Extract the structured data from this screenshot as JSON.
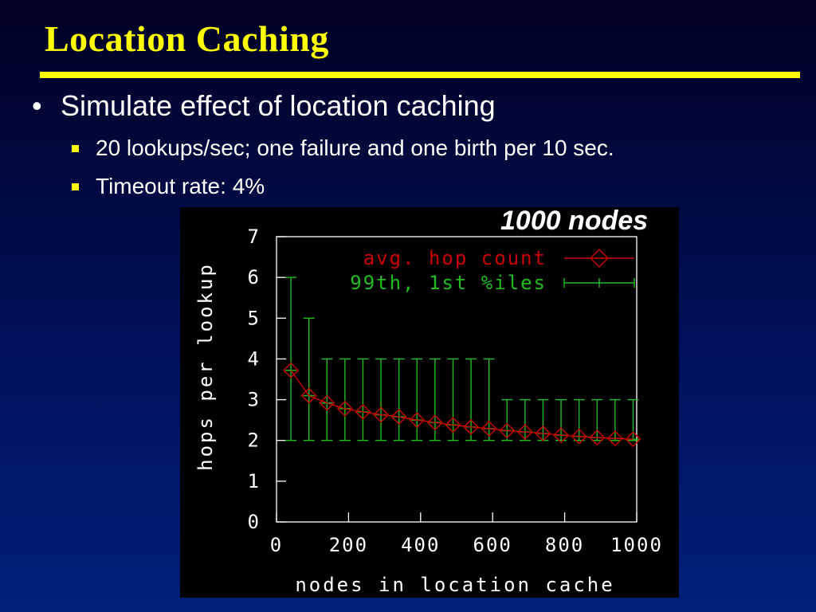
{
  "slide": {
    "title": "Location Caching",
    "bullet": "Simulate effect of location caching",
    "sub_bullets": [
      "20 lookups/sec; one failure and one birth per 10 sec.",
      "Timeout rate: 4%"
    ],
    "chart_note": "1000 nodes"
  },
  "colors": {
    "title": "#ffff00",
    "avg_series": "#cc0000",
    "percentile_series": "#22bb22",
    "axis": "#ffffff"
  },
  "chart_data": {
    "type": "line",
    "xlabel": "nodes in location cache",
    "ylabel": "hops per lookup",
    "xlim": [
      0,
      1000
    ],
    "ylim": [
      0,
      7
    ],
    "xticks": [
      0,
      200,
      400,
      600,
      800,
      1000
    ],
    "yticks": [
      0,
      1,
      2,
      3,
      4,
      5,
      6,
      7
    ],
    "legend_position": "top-right",
    "x": [
      40,
      90,
      140,
      190,
      240,
      290,
      340,
      390,
      440,
      490,
      540,
      590,
      640,
      690,
      740,
      790,
      840,
      890,
      940,
      990
    ],
    "series": [
      {
        "name": "avg. hop count",
        "style": "line-diamond",
        "values": [
          3.72,
          3.1,
          2.92,
          2.78,
          2.7,
          2.63,
          2.58,
          2.5,
          2.44,
          2.38,
          2.33,
          2.29,
          2.24,
          2.21,
          2.17,
          2.13,
          2.1,
          2.07,
          2.05,
          2.03
        ]
      },
      {
        "name": "99th, 1st %iles",
        "style": "errorbar",
        "low": [
          2,
          2,
          2,
          2,
          2,
          2,
          2,
          2,
          2,
          2,
          2,
          2,
          2,
          2,
          2,
          2,
          2,
          2,
          2,
          2
        ],
        "high": [
          6,
          5,
          4,
          4,
          4,
          4,
          4,
          4,
          4,
          4,
          4,
          4,
          3,
          3,
          3,
          3,
          3,
          3,
          3,
          3
        ]
      }
    ]
  }
}
